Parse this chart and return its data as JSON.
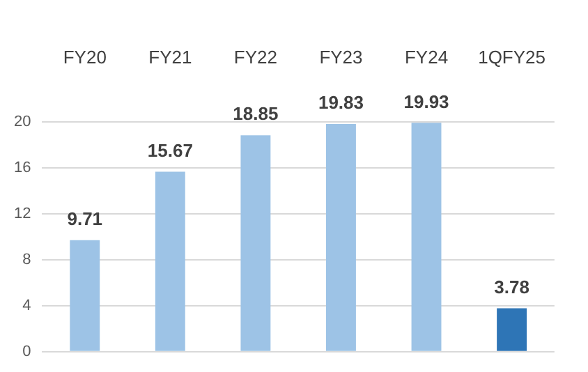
{
  "chart_data": {
    "type": "bar",
    "categories": [
      "FY20",
      "FY21",
      "FY22",
      "FY23",
      "FY24",
      "1QFY25"
    ],
    "values": [
      9.71,
      15.67,
      18.85,
      19.83,
      19.93,
      3.78
    ],
    "colors": [
      "#9dc3e6",
      "#9dc3e6",
      "#9dc3e6",
      "#9dc3e6",
      "#9dc3e6",
      "#2e75b6"
    ],
    "ylim": [
      0,
      20
    ],
    "yticks": [
      0,
      4,
      8,
      12,
      16,
      20
    ],
    "grid": "y",
    "data_labels": true
  }
}
